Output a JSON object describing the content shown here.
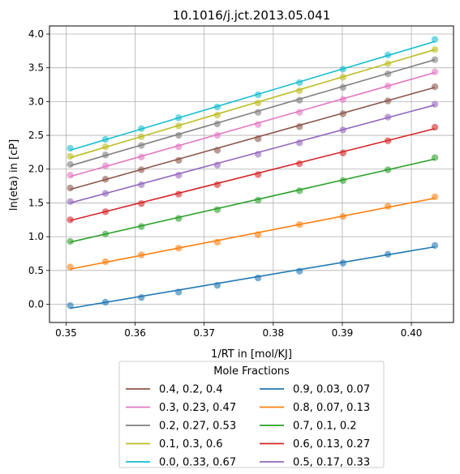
{
  "chart_data": {
    "type": "scatter",
    "title": "10.1016/j.jct.2013.05.041",
    "xlabel": "1/RT in [mol/KJ]",
    "ylabel": "ln(eta) in [cP]",
    "xlim": [
      0.3476,
      0.4061
    ],
    "ylim": [
      -0.27,
      4.12
    ],
    "xticks": [
      0.35,
      0.36,
      0.37,
      0.38,
      0.39,
      0.4
    ],
    "xtick_labels": [
      "0.35",
      "0.36",
      "0.37",
      "0.38",
      "0.39",
      "0.40"
    ],
    "yticks": [
      0.0,
      0.5,
      1.0,
      1.5,
      2.0,
      2.5,
      3.0,
      3.5,
      4.0
    ],
    "ytick_labels": [
      "0.0",
      "0.5",
      "1.0",
      "1.5",
      "2.0",
      "2.5",
      "3.0",
      "3.5",
      "4.0"
    ],
    "grid": true,
    "legend_title": "Mole Fractions",
    "legend_position": "below the plot, two columns",
    "x": [
      0.3506,
      0.3557,
      0.3609,
      0.3663,
      0.3719,
      0.3778,
      0.3838,
      0.3901,
      0.3966,
      0.4034
    ],
    "series": [
      {
        "name": "0.4, 0.2, 0.4",
        "color": "#8c564b",
        "y": [
          1.72,
          1.85,
          1.99,
          2.13,
          2.28,
          2.45,
          2.63,
          2.82,
          3.01,
          3.22
        ],
        "fit": [
          1.7,
          3.21
        ]
      },
      {
        "name": "0.3, 0.23, 0.47",
        "color": "#e377c2",
        "y": [
          1.91,
          2.05,
          2.18,
          2.33,
          2.5,
          2.66,
          2.84,
          3.03,
          3.23,
          3.44
        ],
        "fit": [
          1.89,
          3.43
        ]
      },
      {
        "name": "0.2, 0.27, 0.53",
        "color": "#7f7f7f",
        "y": [
          2.07,
          2.21,
          2.35,
          2.5,
          2.67,
          2.84,
          3.02,
          3.21,
          3.41,
          3.62
        ],
        "fit": [
          2.05,
          3.62
        ]
      },
      {
        "name": "0.1, 0.3, 0.6",
        "color": "#bcbd22",
        "y": [
          2.19,
          2.33,
          2.48,
          2.64,
          2.8,
          2.98,
          3.16,
          3.36,
          3.56,
          3.77
        ],
        "fit": [
          2.17,
          3.77
        ]
      },
      {
        "name": "0.0, 0.33, 0.67",
        "color": "#17becf",
        "y": [
          2.31,
          2.44,
          2.6,
          2.76,
          2.92,
          3.1,
          3.28,
          3.48,
          3.69,
          3.92
        ],
        "fit": [
          2.28,
          3.89
        ]
      },
      {
        "name": "0.9, 0.03, 0.07",
        "color": "#1f77b4",
        "y": [
          -0.02,
          0.03,
          0.1,
          0.18,
          0.28,
          0.39,
          0.49,
          0.61,
          0.74,
          0.87
        ],
        "fit": [
          -0.06,
          0.85
        ]
      },
      {
        "name": "0.8, 0.07, 0.13",
        "color": "#ff7f0e",
        "y": [
          0.55,
          0.63,
          0.73,
          0.83,
          0.92,
          1.03,
          1.18,
          1.3,
          1.45,
          1.59
        ],
        "fit": [
          0.52,
          1.57
        ]
      },
      {
        "name": "0.7, 0.1, 0.2",
        "color": "#2ca02c",
        "y": [
          0.93,
          1.04,
          1.15,
          1.27,
          1.4,
          1.54,
          1.68,
          1.83,
          1.99,
          2.17
        ],
        "fit": [
          0.92,
          2.15
        ]
      },
      {
        "name": "0.6, 0.13, 0.27",
        "color": "#d62728",
        "y": [
          1.25,
          1.37,
          1.49,
          1.63,
          1.77,
          1.92,
          2.08,
          2.24,
          2.42,
          2.62
        ],
        "fit": [
          1.24,
          2.6
        ]
      },
      {
        "name": "0.5, 0.17, 0.33",
        "color": "#9467bd",
        "y": [
          1.52,
          1.64,
          1.77,
          1.91,
          2.06,
          2.22,
          2.39,
          2.58,
          2.77,
          2.96
        ],
        "fit": [
          1.5,
          2.95
        ]
      }
    ]
  }
}
